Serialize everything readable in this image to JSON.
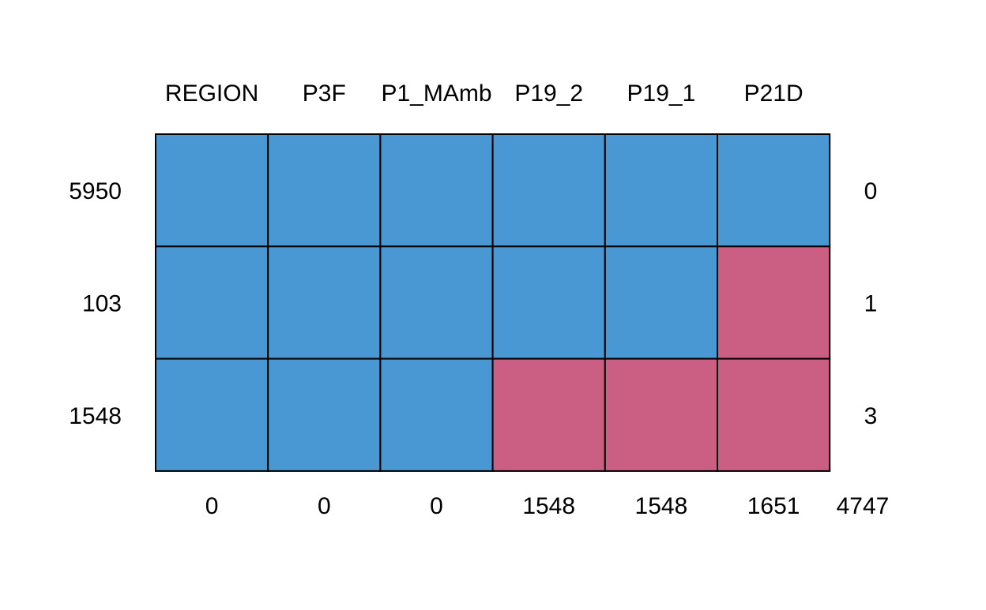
{
  "chart_data": {
    "type": "heatmap",
    "title": "",
    "columns": [
      "REGION",
      "P3F",
      "P1_MAmb",
      "P19_2",
      "P19_1",
      "P21D"
    ],
    "row_counts": [
      "5950",
      "103",
      "1548"
    ],
    "row_missing": [
      "0",
      "1",
      "3"
    ],
    "column_missing": [
      "0",
      "0",
      "0",
      "1548",
      "1548",
      "1651"
    ],
    "total_missing": "4747",
    "matrix": [
      [
        0,
        0,
        0,
        0,
        0,
        0
      ],
      [
        0,
        0,
        0,
        0,
        0,
        1
      ],
      [
        0,
        0,
        0,
        1,
        1,
        1
      ]
    ],
    "colors": {
      "observed": "#4A98D3",
      "missing": "#CB5F83",
      "border": "#000000"
    }
  }
}
